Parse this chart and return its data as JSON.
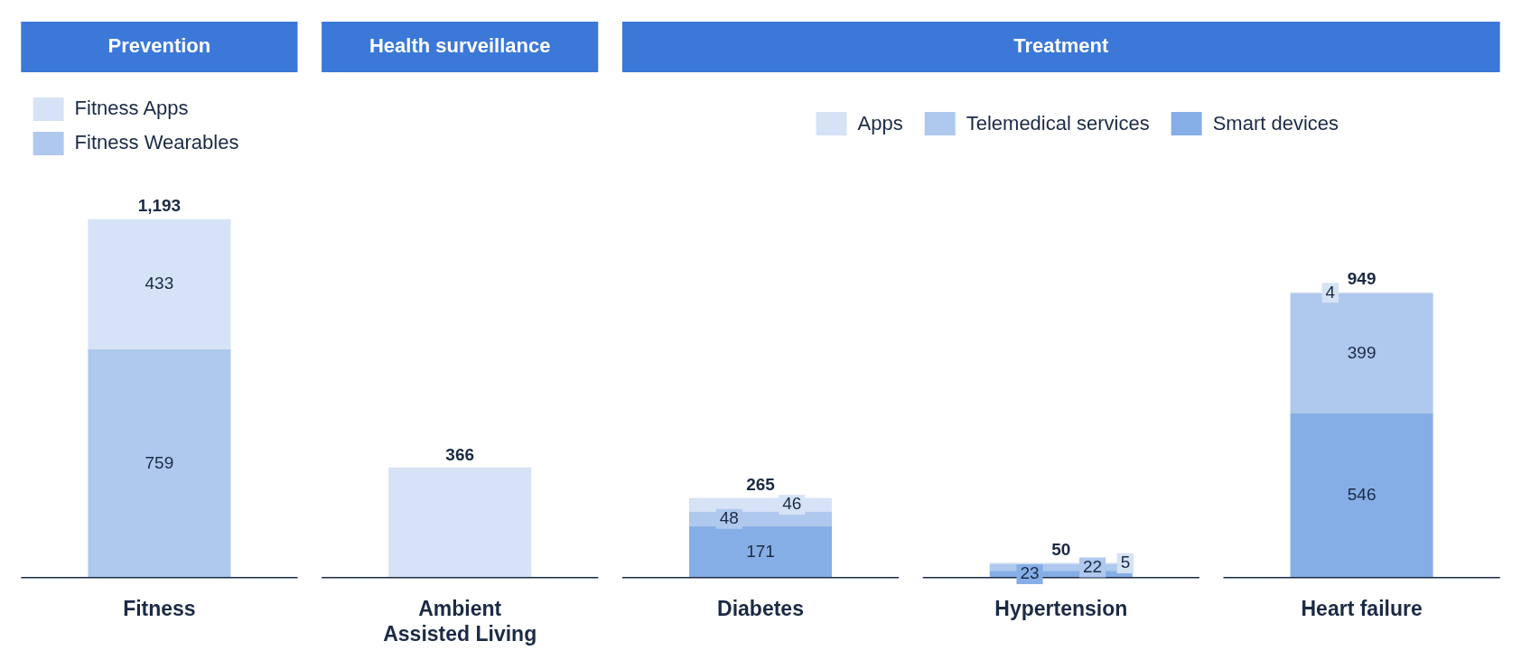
{
  "chart_data": {
    "type": "bar",
    "stacked": true,
    "categories": [
      "Fitness",
      "Ambient Assisted Living",
      "Diabetes",
      "Hypertension",
      "Heart failure"
    ],
    "annotations": [
      "Prevention",
      "Health surveillance",
      "Treatment"
    ],
    "legend": "top",
    "data_labels": false,
    "totals": [
      "1,193",
      "366",
      "265",
      "50",
      "949"
    ],
    "series": [
      {
        "name": "Fitness Wearables",
        "color": "#aec8ee",
        "values": [
          759,
          null,
          null,
          null,
          null
        ],
        "value_labels": [
          "759",
          null,
          null,
          null,
          null
        ]
      },
      {
        "name": "Fitness Apps",
        "color": "#d6e2f5",
        "values": [
          433,
          null,
          null,
          null,
          null
        ],
        "value_labels": [
          "433",
          null,
          null,
          null,
          null
        ]
      },
      {
        "color": "#d6e2f5",
        "values": [
          null,
          366,
          null,
          null,
          null
        ],
        "value_labels": [
          null,
          null,
          null,
          null,
          null
        ]
      },
      {
        "name": "Smart devices",
        "color": "#86aee6",
        "values": [
          null,
          null,
          171,
          23,
          546
        ],
        "value_labels": [
          null,
          null,
          "171",
          "23",
          "546"
        ]
      },
      {
        "name": "Telemedical services",
        "color": "#aec8ee",
        "values": [
          null,
          null,
          48,
          22,
          399
        ],
        "value_labels": [
          null,
          null,
          "48",
          "22",
          "399"
        ]
      },
      {
        "name": "Apps",
        "color": "#d6e2f5",
        "values": [
          null,
          null,
          46,
          5,
          4
        ],
        "value_labels": [
          null,
          null,
          "46",
          "5",
          "4"
        ]
      }
    ]
  }
}
